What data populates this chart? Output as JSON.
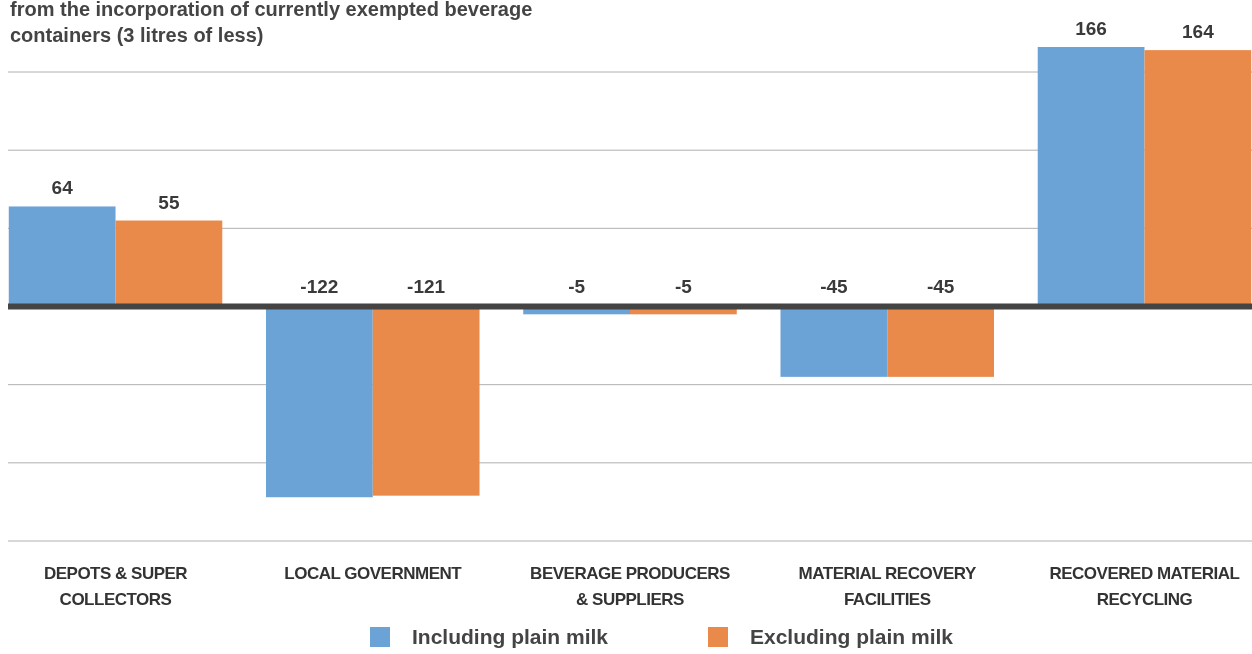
{
  "chart_data": {
    "type": "bar",
    "title": "from the incorporation of currently exempted beverage containers (3 litres of less)",
    "categories": [
      "DEPOTS & SUPER COLLECTORS",
      "LOCAL GOVERNMENT",
      "BEVERAGE PRODUCERS & SUPPLIERS",
      "MATERIAL RECOVERY FACILITIES",
      "RECOVERED MATERIAL RECYCLING"
    ],
    "series": [
      {
        "name": "Including plain milk",
        "color": "#6ca3d6",
        "values": [
          64,
          -122,
          -5,
          -45,
          166
        ]
      },
      {
        "name": "Excluding plain milk",
        "color": "#e98a4b",
        "values": [
          55,
          -121,
          -5,
          -45,
          164
        ]
      }
    ],
    "yticks": [
      {
        "value": -150,
        "label": null
      },
      {
        "value": -100,
        "label": null
      },
      {
        "value": -50,
        "label": null
      },
      {
        "value": 0,
        "label": null
      },
      {
        "value": 50,
        "label": null
      },
      {
        "value": 100,
        "label": null
      },
      {
        "value": 150,
        "label": null
      }
    ],
    "grid": true,
    "data_labels": true,
    "legend": "bottom",
    "tick_labels": "x"
  }
}
